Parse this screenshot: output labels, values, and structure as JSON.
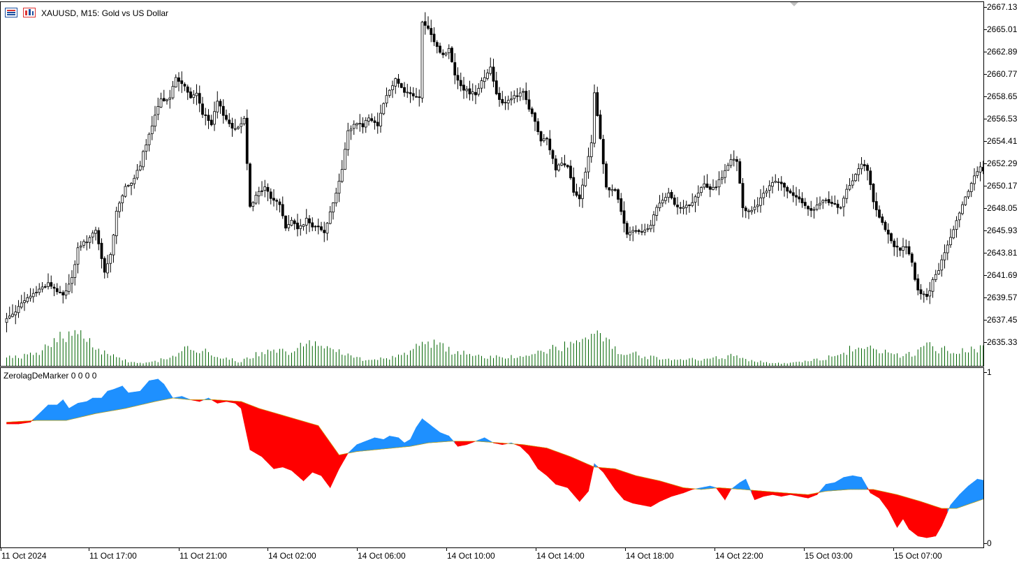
{
  "header": {
    "title": "XAUUSD, M15:  Gold vs US Dollar",
    "icons": [
      "symbol-list-icon",
      "chart-shift-icon"
    ]
  },
  "indicator": {
    "title": "ZerolagDeMarker 0 0 0 0",
    "axis_top_label": "1",
    "axis_bottom_label": "0"
  },
  "colors": {
    "bull_body": "#ffffff",
    "bear_body": "#000000",
    "wick": "#000000",
    "volume": "#006400",
    "ind_up": "#1e90ff",
    "ind_down": "#ff0000"
  },
  "chart_data": [
    {
      "type": "candlestick",
      "symbol": "XAUUSD",
      "timeframe": "M15",
      "ylim": [
        2633.2,
        2668.0
      ],
      "y_ticks": [
        "2667.13",
        "2665.01",
        "2662.89",
        "2660.77",
        "2658.65",
        "2656.53",
        "2654.41",
        "2652.29",
        "2650.17",
        "2648.05",
        "2645.93",
        "2643.81",
        "2641.69",
        "2639.57",
        "2637.45",
        "2635.33"
      ],
      "x_ticks": [
        "11 Oct 2024",
        "11 Oct 17:00",
        "11 Oct 21:00",
        "14 Oct 02:00",
        "14 Oct 06:00",
        "14 Oct 10:00",
        "14 Oct 14:00",
        "14 Oct 18:00",
        "14 Oct 22:00",
        "15 Oct 03:00",
        "15 Oct 07:00"
      ],
      "close_path": [
        [
          0,
          2637.6
        ],
        [
          8,
          2639.8
        ],
        [
          14,
          2641.0
        ],
        [
          17,
          2640.2
        ],
        [
          19,
          2639.8
        ],
        [
          22,
          2641.5
        ],
        [
          24,
          2644.2
        ],
        [
          26,
          2644.8
        ],
        [
          28,
          2645.3
        ],
        [
          30,
          2645.9
        ],
        [
          33,
          2642.0
        ],
        [
          35,
          2643.6
        ],
        [
          37,
          2647.8
        ],
        [
          38,
          2648.7
        ],
        [
          40,
          2650.0
        ],
        [
          42,
          2650.6
        ],
        [
          45,
          2652.0
        ],
        [
          46,
          2653.4
        ],
        [
          48,
          2655.0
        ],
        [
          50,
          2656.8
        ],
        [
          52,
          2658.4
        ],
        [
          55,
          2658.6
        ],
        [
          57,
          2660.5
        ],
        [
          60,
          2659.6
        ],
        [
          62,
          2658.5
        ],
        [
          64,
          2659.1
        ],
        [
          66,
          2657.1
        ],
        [
          69,
          2656.0
        ],
        [
          71,
          2658.2
        ],
        [
          74,
          2656.5
        ],
        [
          77,
          2655.5
        ],
        [
          80,
          2656.6
        ],
        [
          82,
          2648.4
        ],
        [
          85,
          2649.6
        ],
        [
          87,
          2650.1
        ],
        [
          89,
          2649.1
        ],
        [
          92,
          2648.5
        ],
        [
          94,
          2646.2
        ],
        [
          96,
          2647.0
        ],
        [
          98,
          2646.1
        ],
        [
          101,
          2647.0
        ],
        [
          103,
          2646.3
        ],
        [
          105,
          2646.5
        ],
        [
          107,
          2645.9
        ],
        [
          110,
          2648.6
        ],
        [
          113,
          2651.8
        ],
        [
          115,
          2655.4
        ],
        [
          118,
          2656.3
        ],
        [
          120,
          2655.9
        ],
        [
          122,
          2656.8
        ],
        [
          125,
          2656.0
        ],
        [
          127,
          2658.2
        ],
        [
          129,
          2659.3
        ],
        [
          131,
          2660.4
        ],
        [
          134,
          2659.2
        ],
        [
          137,
          2658.8
        ],
        [
          139,
          2658.5
        ],
        [
          140,
          2665.8
        ],
        [
          142,
          2665.0
        ],
        [
          145,
          2663.4
        ],
        [
          147,
          2662.6
        ],
        [
          149,
          2663.2
        ],
        [
          151,
          2660.8
        ],
        [
          154,
          2659.4
        ],
        [
          156,
          2659.1
        ],
        [
          158,
          2659.0
        ],
        [
          160,
          2660.2
        ],
        [
          163,
          2661.4
        ],
        [
          165,
          2659.0
        ],
        [
          167,
          2658.1
        ],
        [
          170,
          2658.6
        ],
        [
          172,
          2658.7
        ],
        [
          174,
          2659.1
        ],
        [
          176,
          2657.6
        ],
        [
          178,
          2656.3
        ],
        [
          180,
          2654.5
        ],
        [
          182,
          2654.6
        ],
        [
          185,
          2651.8
        ],
        [
          187,
          2652.5
        ],
        [
          189,
          2652.2
        ],
        [
          191,
          2649.6
        ],
        [
          193,
          2648.9
        ],
        [
          195,
          2651.4
        ],
        [
          197,
          2654.3
        ],
        [
          198,
          2659.0
        ],
        [
          200,
          2654.8
        ],
        [
          202,
          2650.0
        ],
        [
          205,
          2649.8
        ],
        [
          207,
          2647.8
        ],
        [
          209,
          2645.6
        ],
        [
          211,
          2645.9
        ],
        [
          214,
          2646.0
        ],
        [
          217,
          2646.4
        ],
        [
          219,
          2648.2
        ],
        [
          221,
          2648.8
        ],
        [
          223,
          2649.4
        ],
        [
          225,
          2648.6
        ],
        [
          227,
          2648.2
        ],
        [
          230,
          2648.3
        ],
        [
          232,
          2649.1
        ],
        [
          235,
          2650.4
        ],
        [
          237,
          2649.8
        ],
        [
          239,
          2650.2
        ],
        [
          241,
          2651.1
        ],
        [
          244,
          2652.6
        ],
        [
          246,
          2652.6
        ],
        [
          248,
          2648.0
        ],
        [
          251,
          2647.8
        ],
        [
          253,
          2648.5
        ],
        [
          256,
          2649.8
        ],
        [
          258,
          2650.6
        ],
        [
          261,
          2650.6
        ],
        [
          263,
          2649.7
        ],
        [
          266,
          2649.0
        ],
        [
          269,
          2648.5
        ],
        [
          271,
          2647.8
        ],
        [
          273,
          2648.3
        ],
        [
          276,
          2648.9
        ],
        [
          279,
          2648.4
        ],
        [
          281,
          2648.1
        ],
        [
          283,
          2650.0
        ],
        [
          286,
          2651.2
        ],
        [
          288,
          2652.4
        ],
        [
          290,
          2651.8
        ],
        [
          292,
          2648.6
        ],
        [
          294,
          2647.2
        ],
        [
          296,
          2646.0
        ],
        [
          299,
          2644.6
        ],
        [
          301,
          2644.1
        ],
        [
          303,
          2644.6
        ],
        [
          305,
          2642.8
        ],
        [
          307,
          2640.2
        ],
        [
          310,
          2639.6
        ],
        [
          312,
          2641.2
        ],
        [
          314,
          2642.3
        ],
        [
          317,
          2644.6
        ],
        [
          319,
          2646.1
        ],
        [
          321,
          2647.5
        ],
        [
          324,
          2649.8
        ],
        [
          326,
          2651.2
        ],
        [
          328,
          2652.0
        ],
        [
          330,
          2651.3
        ]
      ],
      "volume_profile": [
        [
          0,
          12
        ],
        [
          10,
          18
        ],
        [
          19,
          45
        ],
        [
          23,
          52
        ],
        [
          28,
          38
        ],
        [
          32,
          22
        ],
        [
          37,
          14
        ],
        [
          41,
          8
        ],
        [
          45,
          5
        ],
        [
          50,
          7
        ],
        [
          56,
          15
        ],
        [
          62,
          28
        ],
        [
          69,
          18
        ],
        [
          75,
          12
        ],
        [
          78,
          6
        ],
        [
          82,
          15
        ],
        [
          88,
          20
        ],
        [
          95,
          22
        ],
        [
          101,
          35
        ],
        [
          106,
          30
        ],
        [
          111,
          25
        ],
        [
          116,
          14
        ],
        [
          121,
          10
        ],
        [
          128,
          12
        ],
        [
          134,
          18
        ],
        [
          139,
          30
        ],
        [
          145,
          32
        ],
        [
          150,
          22
        ],
        [
          156,
          18
        ],
        [
          163,
          14
        ],
        [
          168,
          12
        ],
        [
          174,
          16
        ],
        [
          180,
          20
        ],
        [
          186,
          28
        ],
        [
          192,
          35
        ],
        [
          197,
          45
        ],
        [
          201,
          38
        ],
        [
          206,
          24
        ],
        [
          211,
          18
        ],
        [
          216,
          14
        ],
        [
          222,
          12
        ],
        [
          230,
          10
        ],
        [
          238,
          12
        ],
        [
          244,
          15
        ],
        [
          250,
          10
        ],
        [
          257,
          6
        ],
        [
          263,
          4
        ],
        [
          270,
          8
        ],
        [
          278,
          14
        ],
        [
          284,
          24
        ],
        [
          290,
          26
        ],
        [
          296,
          20
        ],
        [
          302,
          16
        ],
        [
          306,
          18
        ],
        [
          310,
          32
        ],
        [
          314,
          25
        ],
        [
          320,
          24
        ],
        [
          326,
          26
        ],
        [
          330,
          28
        ]
      ],
      "volume_max_ratio": 0.105
    },
    {
      "type": "area",
      "name": "ZerolagDeMarker",
      "ylim": [
        0,
        1
      ],
      "fast_path": [
        [
          0,
          0.7
        ],
        [
          4,
          0.7
        ],
        [
          8,
          0.71
        ],
        [
          11,
          0.76
        ],
        [
          14,
          0.81
        ],
        [
          17,
          0.81
        ],
        [
          19,
          0.84
        ],
        [
          21,
          0.79
        ],
        [
          24,
          0.82
        ],
        [
          27,
          0.83
        ],
        [
          29,
          0.85
        ],
        [
          32,
          0.85
        ],
        [
          34,
          0.89
        ],
        [
          36,
          0.9
        ],
        [
          39,
          0.92
        ],
        [
          41,
          0.88
        ],
        [
          45,
          0.89
        ],
        [
          48,
          0.95
        ],
        [
          51,
          0.96
        ],
        [
          53,
          0.93
        ],
        [
          56,
          0.85
        ],
        [
          59,
          0.86
        ],
        [
          62,
          0.84
        ],
        [
          65,
          0.83
        ],
        [
          68,
          0.85
        ],
        [
          71,
          0.82
        ],
        [
          74,
          0.83
        ],
        [
          77,
          0.82
        ],
        [
          79,
          0.79
        ],
        [
          82,
          0.55
        ],
        [
          86,
          0.51
        ],
        [
          90,
          0.44
        ],
        [
          93,
          0.45
        ],
        [
          96,
          0.43
        ],
        [
          100,
          0.37
        ],
        [
          103,
          0.42
        ],
        [
          106,
          0.4
        ],
        [
          109,
          0.33
        ],
        [
          112,
          0.44
        ],
        [
          115,
          0.53
        ],
        [
          118,
          0.58
        ],
        [
          121,
          0.6
        ],
        [
          124,
          0.62
        ],
        [
          127,
          0.61
        ],
        [
          129,
          0.63
        ],
        [
          132,
          0.62
        ],
        [
          134,
          0.59
        ],
        [
          136,
          0.61
        ],
        [
          138,
          0.68
        ],
        [
          140,
          0.73
        ],
        [
          143,
          0.69
        ],
        [
          146,
          0.65
        ],
        [
          149,
          0.63
        ],
        [
          152,
          0.57
        ],
        [
          155,
          0.58
        ],
        [
          158,
          0.6
        ],
        [
          161,
          0.62
        ],
        [
          164,
          0.59
        ],
        [
          167,
          0.58
        ],
        [
          170,
          0.59
        ],
        [
          173,
          0.57
        ],
        [
          176,
          0.52
        ],
        [
          179,
          0.44
        ],
        [
          182,
          0.4
        ],
        [
          185,
          0.35
        ],
        [
          189,
          0.33
        ],
        [
          193,
          0.25
        ],
        [
          196,
          0.31
        ],
        [
          198,
          0.47
        ],
        [
          201,
          0.42
        ],
        [
          205,
          0.32
        ],
        [
          208,
          0.26
        ],
        [
          211,
          0.24
        ],
        [
          214,
          0.23
        ],
        [
          217,
          0.22
        ],
        [
          220,
          0.25
        ],
        [
          224,
          0.28
        ],
        [
          228,
          0.3
        ],
        [
          231,
          0.32
        ],
        [
          234,
          0.33
        ],
        [
          237,
          0.34
        ],
        [
          239,
          0.33
        ],
        [
          242,
          0.26
        ],
        [
          244,
          0.32
        ],
        [
          247,
          0.36
        ],
        [
          249,
          0.38
        ],
        [
          252,
          0.26
        ],
        [
          255,
          0.28
        ],
        [
          258,
          0.29
        ],
        [
          261,
          0.28
        ],
        [
          264,
          0.29
        ],
        [
          267,
          0.28
        ],
        [
          270,
          0.27
        ],
        [
          273,
          0.29
        ],
        [
          276,
          0.35
        ],
        [
          279,
          0.36
        ],
        [
          282,
          0.39
        ],
        [
          285,
          0.4
        ],
        [
          288,
          0.39
        ],
        [
          291,
          0.3
        ],
        [
          294,
          0.27
        ],
        [
          297,
          0.2
        ],
        [
          300,
          0.1
        ],
        [
          302,
          0.15
        ],
        [
          304,
          0.09
        ],
        [
          307,
          0.05
        ],
        [
          310,
          0.04
        ],
        [
          313,
          0.05
        ],
        [
          315,
          0.11
        ],
        [
          318,
          0.23
        ],
        [
          321,
          0.29
        ],
        [
          324,
          0.34
        ],
        [
          327,
          0.38
        ],
        [
          330,
          0.37
        ]
      ],
      "slow_path": [
        [
          0,
          0.71
        ],
        [
          10,
          0.72
        ],
        [
          20,
          0.72
        ],
        [
          30,
          0.76
        ],
        [
          40,
          0.79
        ],
        [
          50,
          0.83
        ],
        [
          56,
          0.85
        ],
        [
          62,
          0.84
        ],
        [
          70,
          0.84
        ],
        [
          79,
          0.83
        ],
        [
          85,
          0.79
        ],
        [
          95,
          0.74
        ],
        [
          105,
          0.69
        ],
        [
          112,
          0.52
        ],
        [
          118,
          0.54
        ],
        [
          124,
          0.55
        ],
        [
          130,
          0.56
        ],
        [
          136,
          0.57
        ],
        [
          142,
          0.59
        ],
        [
          150,
          0.6
        ],
        [
          158,
          0.6
        ],
        [
          166,
          0.59
        ],
        [
          174,
          0.58
        ],
        [
          182,
          0.56
        ],
        [
          190,
          0.51
        ],
        [
          198,
          0.45
        ],
        [
          205,
          0.44
        ],
        [
          212,
          0.4
        ],
        [
          220,
          0.37
        ],
        [
          228,
          0.33
        ],
        [
          234,
          0.32
        ],
        [
          240,
          0.33
        ],
        [
          248,
          0.32
        ],
        [
          255,
          0.31
        ],
        [
          262,
          0.3
        ],
        [
          270,
          0.29
        ],
        [
          276,
          0.31
        ],
        [
          284,
          0.32
        ],
        [
          292,
          0.32
        ],
        [
          300,
          0.29
        ],
        [
          308,
          0.25
        ],
        [
          315,
          0.21
        ],
        [
          320,
          0.21
        ],
        [
          325,
          0.24
        ],
        [
          330,
          0.27
        ]
      ],
      "up_color": "#1e90ff",
      "down_color": "#ff0000"
    }
  ]
}
